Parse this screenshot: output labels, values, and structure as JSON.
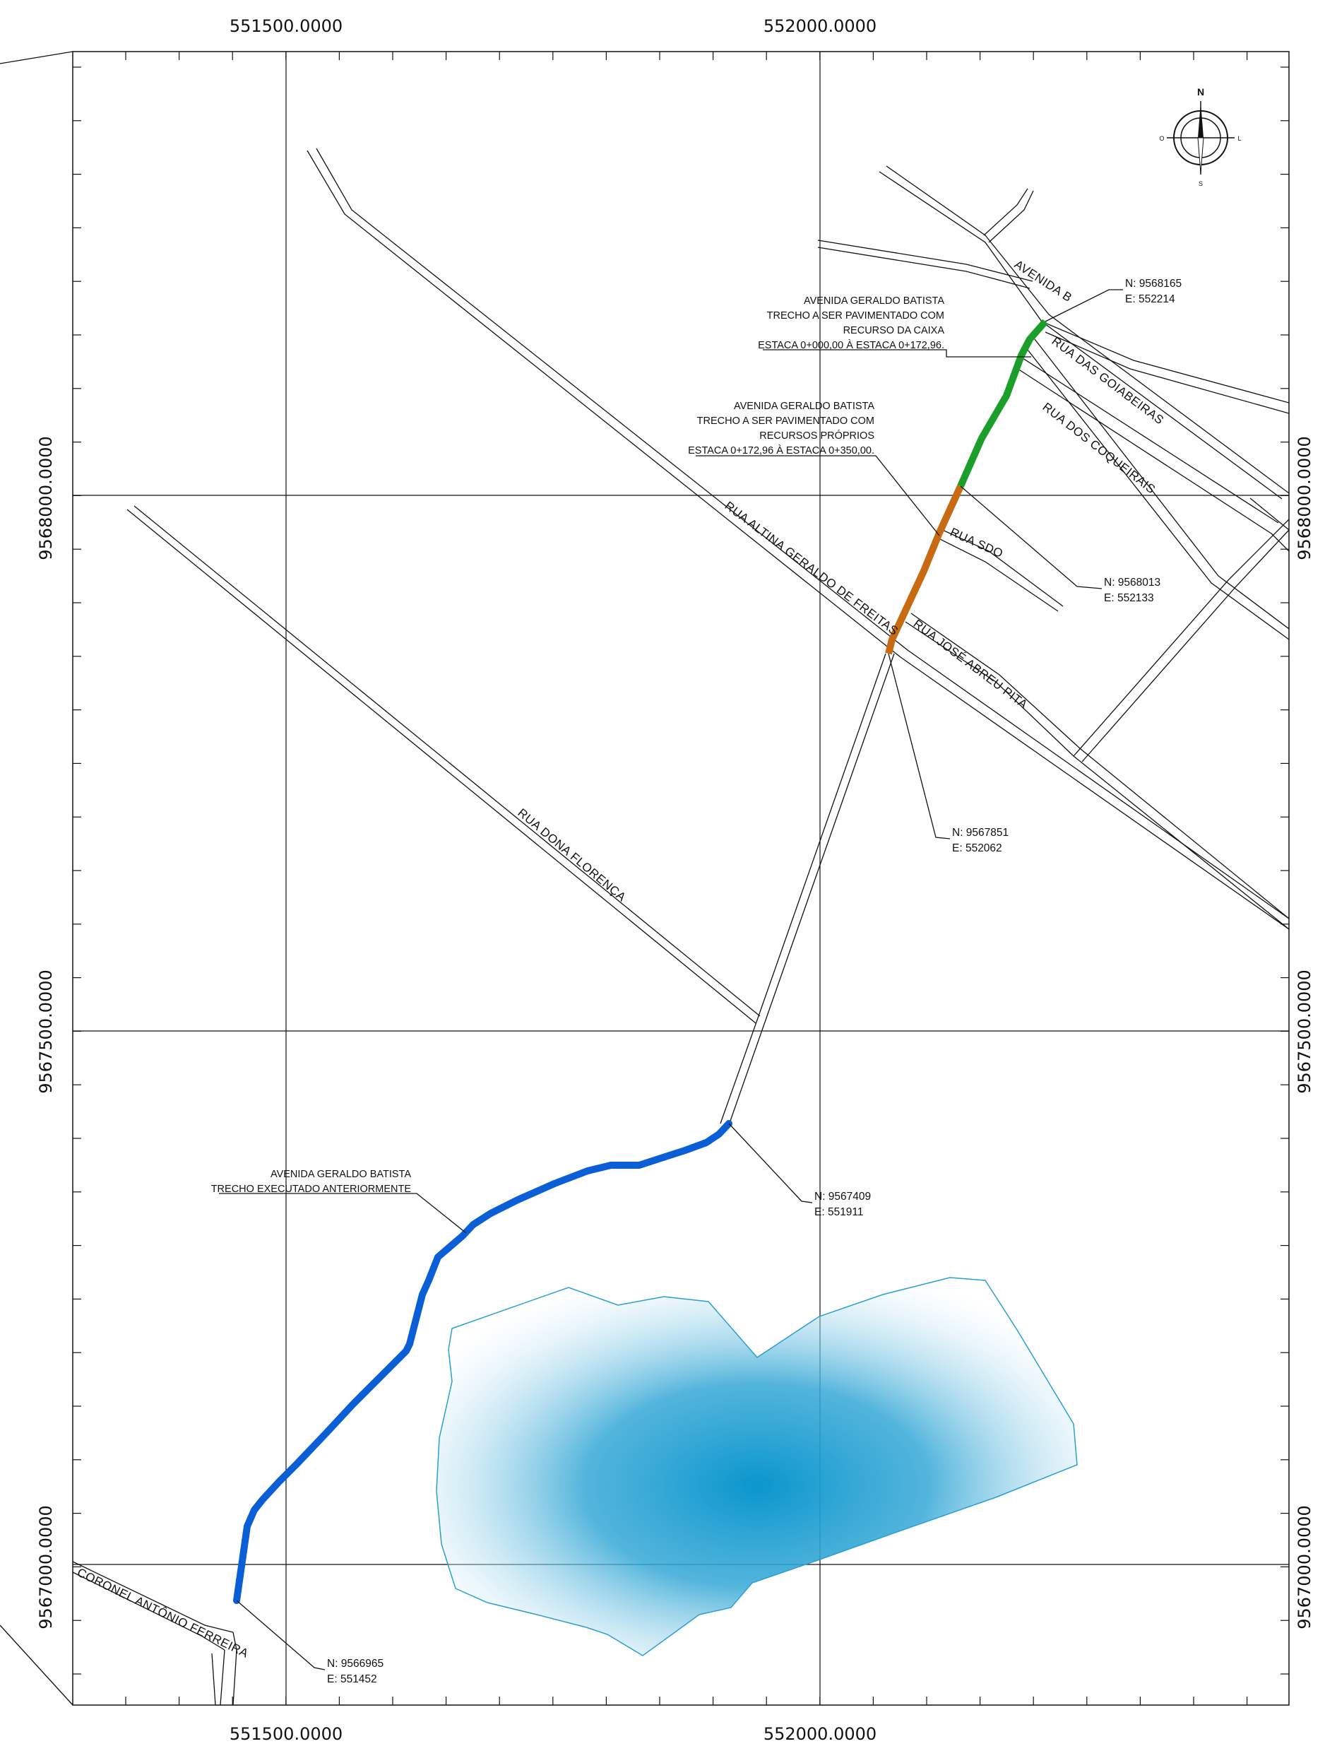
{
  "colors": {
    "executed": "#0a5fd6",
    "caixa": "#1b9e2a",
    "proprios": "#c86a12",
    "water": "#0a96cd",
    "lines": "#111111"
  },
  "grid_labels": {
    "x_top_left": "551500.0000",
    "x_top_right": "552000.0000",
    "x_bottom_left": "551500.0000",
    "x_bottom_right": "552000.0000",
    "y_left_top": "9568000.0000",
    "y_left_mid": "9567500.0000",
    "y_left_bottom": "9567000.0000",
    "y_right_top": "9568000.0000",
    "y_right_mid": "9567500.0000",
    "y_right_bottom": "9567000.0000"
  },
  "compass": {
    "n": "N",
    "s": "S",
    "e": "L",
    "w": "O"
  },
  "streets": {
    "avenida_b": "AVENIDA B",
    "goiabeiras": "RUA DAS GOIABEIRAS",
    "coqueirais": "RUA DOS COQUEIRAIS",
    "sdo": "RUA SDO",
    "altina": "RUA ALTINA GERALDO DE FREITAS",
    "jose_abreu": "RUA JOSÉ ABREU PITA",
    "dona_florenca": "RUA  DONA FLORENÇA",
    "coronel": "CORONEL ANTÔNIO FERREIRA"
  },
  "notes": {
    "caixa": [
      "AVENIDA GERALDO BATISTA",
      "TRECHO A SER PAVIMENTADO COM",
      "RECURSO DA CAIXA",
      "ESTACA 0+000,00 À ESTACA 0+172,96."
    ],
    "proprios": [
      "AVENIDA GERALDO BATISTA",
      "TRECHO A SER PAVIMENTADO COM",
      "RECURSOS PRÓPRIOS",
      "ESTACA 0+172,96 À ESTACA  0+350,00."
    ],
    "executado": [
      "AVENIDA GERALDO BATISTA",
      "TRECHO EXECUTADO ANTERIORMENTE"
    ]
  },
  "points": {
    "p1": {
      "n": "N: 9568165",
      "e": "E: 552214"
    },
    "p2": {
      "n": "N: 9568013",
      "e": "E: 552133"
    },
    "p3": {
      "n": "N: 9567851",
      "e": "E: 552062"
    },
    "p4": {
      "n": "N: 9567409",
      "e": "E: 551911"
    },
    "p5": {
      "n": "N: 9566965",
      "e": "E: 551452"
    }
  }
}
